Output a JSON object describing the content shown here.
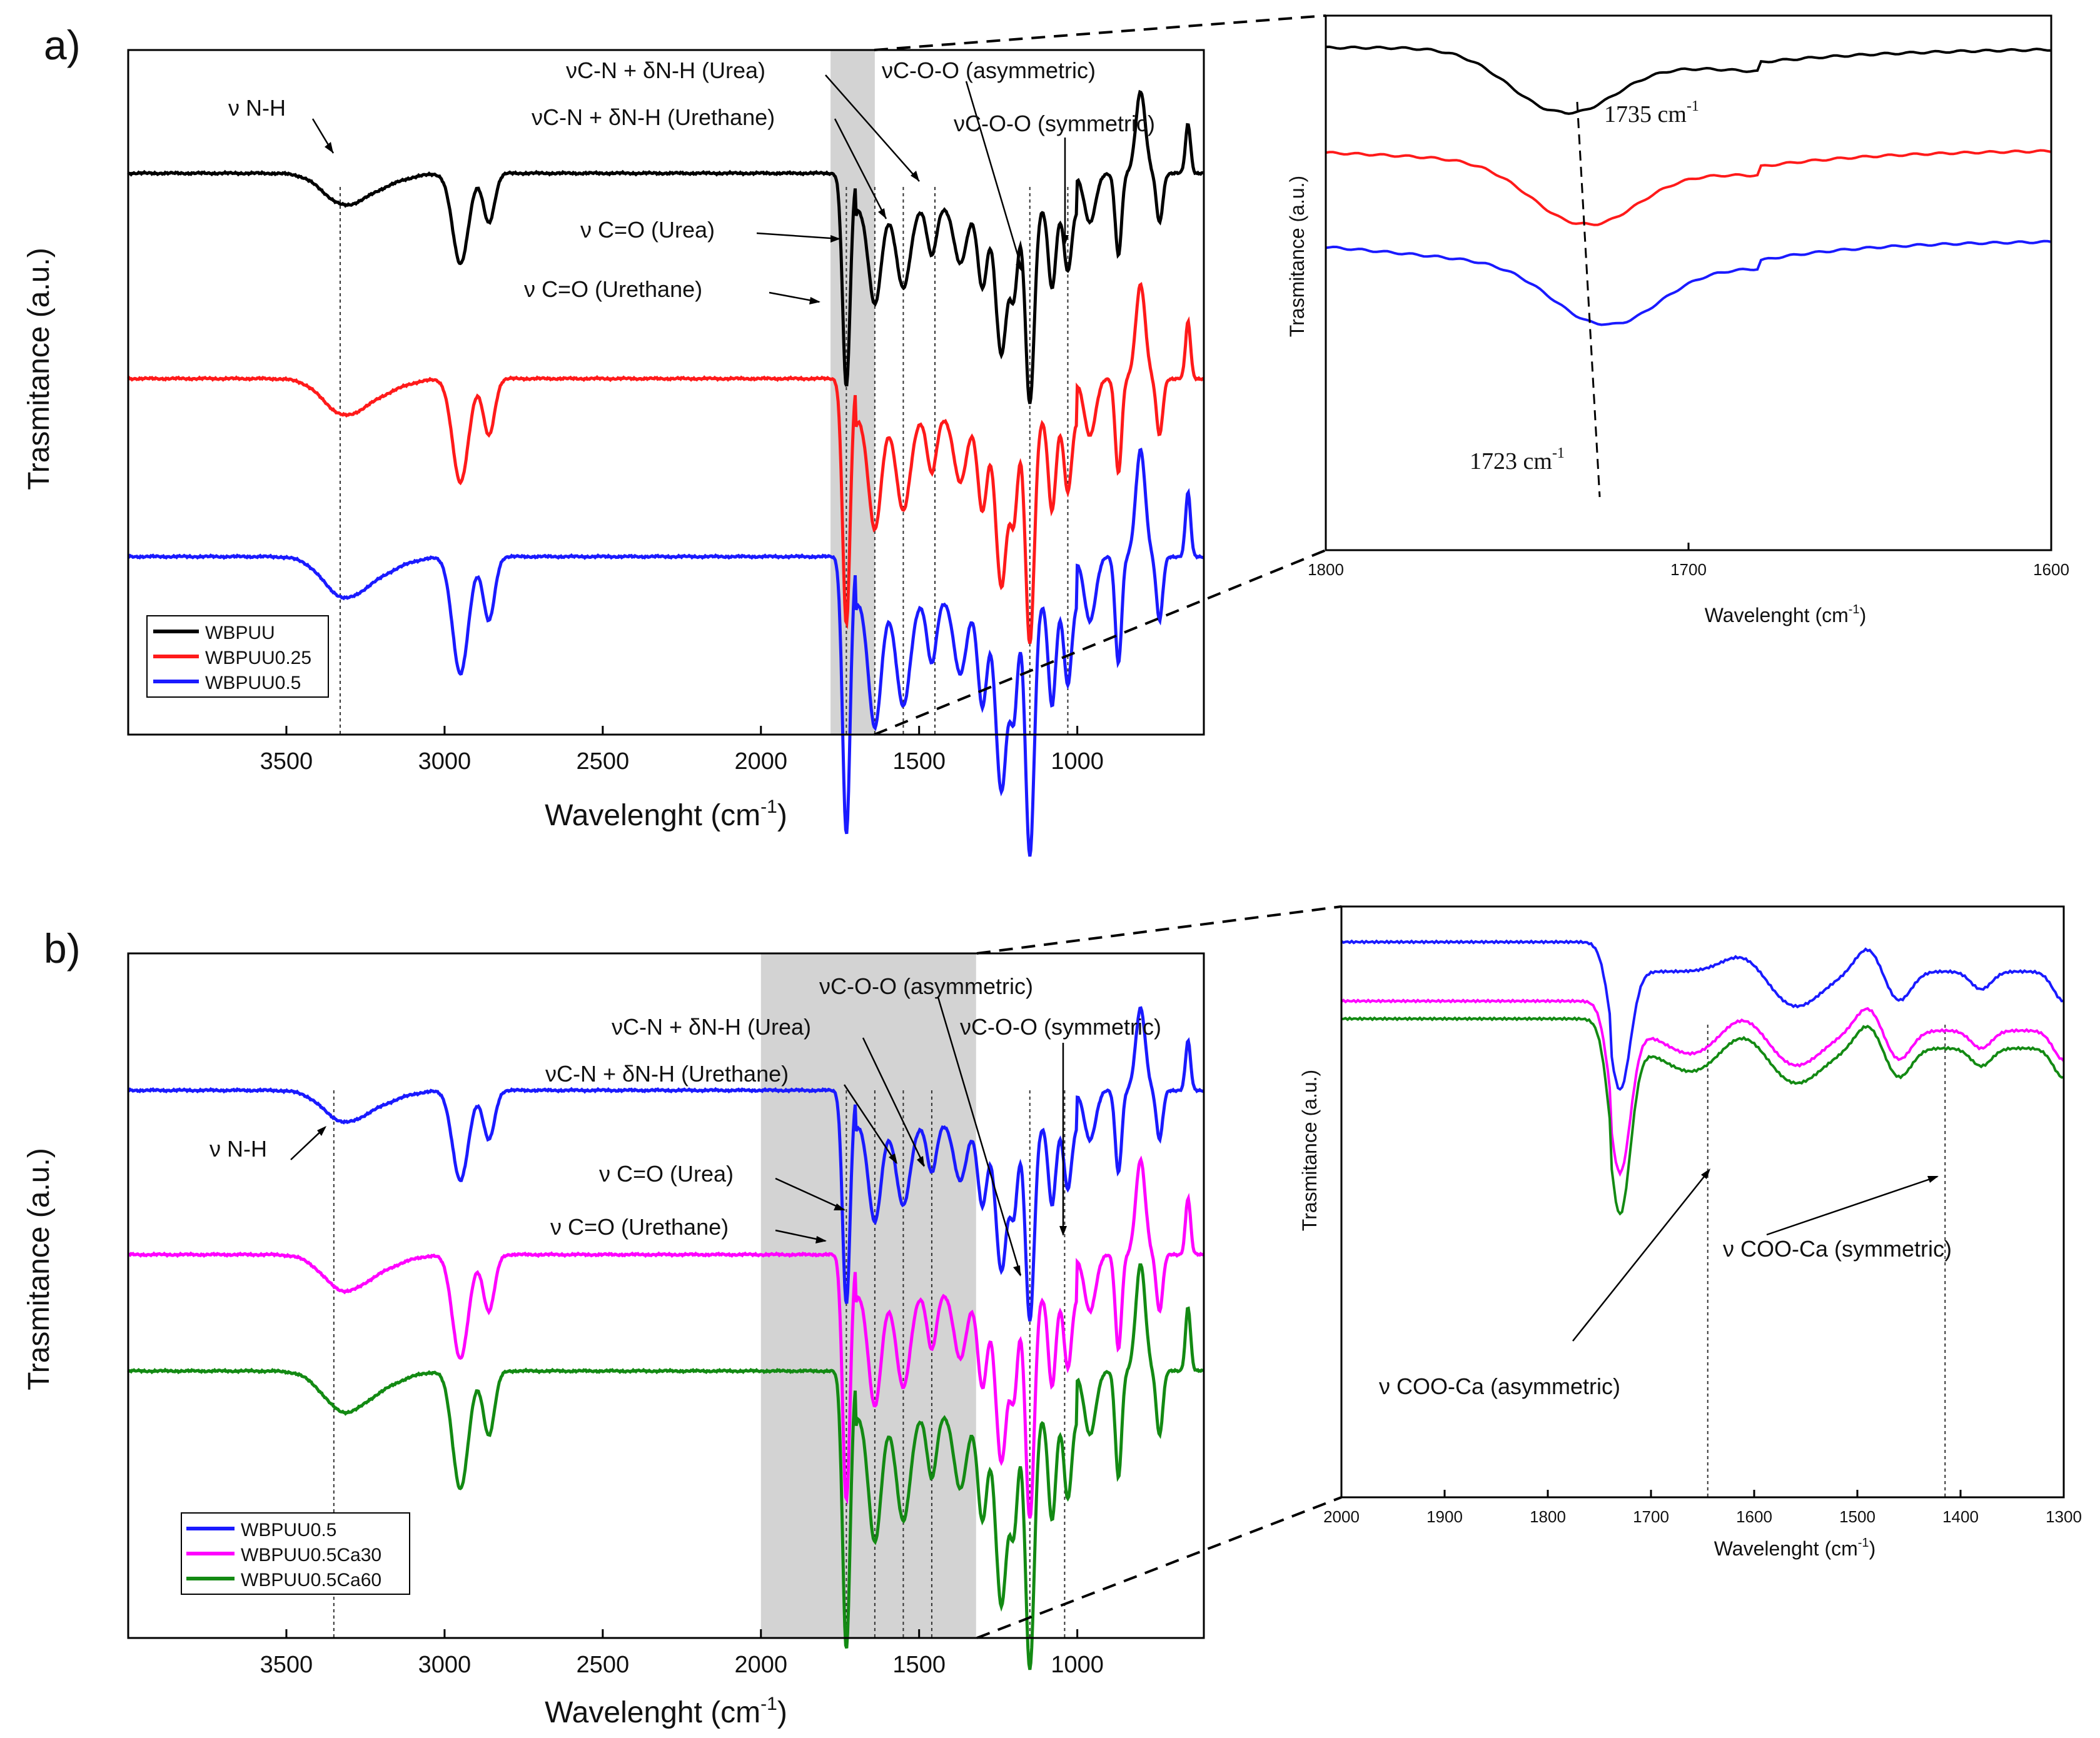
{
  "figure": {
    "panel_labels": [
      "a)",
      "b)"
    ],
    "ylabel": "Trasmitance (a.u.)",
    "xlabel_text": "Wavelenght (cm",
    "xlabel_sup": "-1",
    "xlabel_close": ")"
  },
  "chart_data": [
    {
      "id": "a_main",
      "type": "line",
      "xlim": [
        4000,
        600
      ],
      "xticks": [
        3500,
        3000,
        2500,
        2000,
        1500,
        1000
      ],
      "shade": [
        1780,
        1640
      ],
      "dashed_lines": [
        3330,
        1730,
        1640,
        1550,
        1450,
        1150,
        1030
      ],
      "legend": [
        "WBPUU",
        "WBPUU0.25",
        "WBPUU0.5"
      ],
      "series": [
        {
          "name": "WBPUU",
          "color": "#000000",
          "offset": 0.18,
          "seed": 1.3
        },
        {
          "name": "WBPUU0.25",
          "color": "#ff1a1a",
          "offset": 0.48,
          "seed": 2.7
        },
        {
          "name": "WBPUU0.5",
          "color": "#1a1aff",
          "offset": 0.74,
          "seed": 4.1
        }
      ],
      "annotations": [
        {
          "text": "ν N-H",
          "x": 3330
        },
        {
          "text": "νC-N + δN-H (Urea)",
          "x": 1550
        },
        {
          "text": "νC-O-O (asymmetric)",
          "x": 1150
        },
        {
          "text": "νC-N + δN-H (Urethane)",
          "x": 1640
        },
        {
          "text": "νC-O-O (symmetric)",
          "x": 1030
        },
        {
          "text": "ν C=O (Urea)",
          "x": 1730
        },
        {
          "text": "ν C=O (Urethane)",
          "x": 1760
        }
      ]
    },
    {
      "id": "a_inset",
      "type": "line",
      "xlim": [
        1800,
        1600
      ],
      "xticks": [
        1800,
        1700,
        1600
      ],
      "xtick_labels": [
        "1800",
        "1700",
        "1600"
      ],
      "series": [
        {
          "name": "WBPUU",
          "color": "#000000",
          "min_at": 1735
        },
        {
          "name": "WBPUU0.25",
          "color": "#ff1a1a",
          "min_at": 1729
        },
        {
          "name": "WBPUU0.5",
          "color": "#1a1aff",
          "min_at": 1723
        }
      ],
      "peak_labels": [
        {
          "value": "1735",
          "unit": "cm",
          "sup": "-1"
        },
        {
          "value": "1723",
          "unit": "cm",
          "sup": "-1"
        }
      ]
    },
    {
      "id": "b_main",
      "type": "line",
      "xlim": [
        4000,
        600
      ],
      "xticks": [
        3500,
        3000,
        2500,
        2000,
        1500,
        1000
      ],
      "shade": [
        2000,
        1320
      ],
      "dashed_lines": [
        3350,
        1730,
        1640,
        1550,
        1460,
        1150,
        1040
      ],
      "legend": [
        "WBPUU0.5",
        "WBPUU0.5Ca30",
        "WBPUU0.5Ca60"
      ],
      "series": [
        {
          "name": "WBPUU0.5",
          "color": "#1a1aff",
          "offset": 0.2,
          "seed": 4.1
        },
        {
          "name": "WBPUU0.5Ca30",
          "color": "#ff00ff",
          "offset": 0.44,
          "seed": 5.9
        },
        {
          "name": "WBPUU0.5Ca60",
          "color": "#138a13",
          "offset": 0.61,
          "seed": 7.3
        }
      ],
      "annotations": [
        {
          "text": "νC-O-O (asymmetric)",
          "x": 1150
        },
        {
          "text": "νC-N + δN-H (Urea)",
          "x": 1550
        },
        {
          "text": "νC-O-O (symmetric)",
          "x": 1040
        },
        {
          "text": "ν N-H",
          "x": 3350
        },
        {
          "text": "νC-N + δN-H (Urethane)",
          "x": 1640
        },
        {
          "text": "ν C=O (Urea)",
          "x": 1730
        },
        {
          "text": "ν C=O (Urethane)",
          "x": 1760
        }
      ]
    },
    {
      "id": "b_inset",
      "type": "line",
      "xlim": [
        2000,
        1300
      ],
      "xticks": [
        2000,
        1900,
        1800,
        1700,
        1600,
        1500,
        1400,
        1300
      ],
      "dashed_lines": [
        1645,
        1415
      ],
      "series": [
        {
          "name": "WBPUU0.5",
          "color": "#1a1aff"
        },
        {
          "name": "WBPUU0.5Ca30",
          "color": "#ff00ff"
        },
        {
          "name": "WBPUU0.5Ca60",
          "color": "#138a13"
        }
      ],
      "annotations": [
        {
          "text": "ν COO-Ca (symmetric)",
          "x": 1415
        },
        {
          "text": "ν COO-Ca (asymmetric)",
          "x": 1645
        }
      ]
    }
  ]
}
